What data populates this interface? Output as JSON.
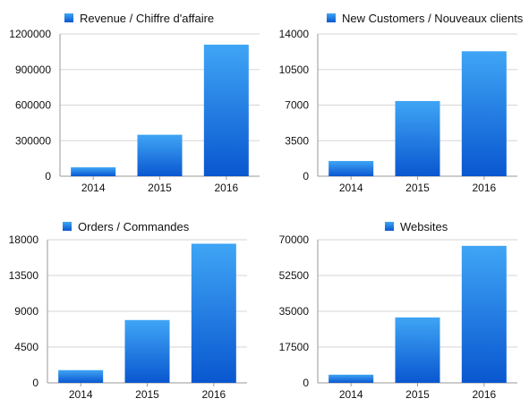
{
  "chart_data": [
    {
      "type": "bar",
      "title": "",
      "legend": [
        "Revenue / Chiffre d'affaire"
      ],
      "legend_placement": "top",
      "categories": [
        "2014",
        "2015",
        "2016"
      ],
      "series": [
        {
          "name": "Revenue / Chiffre d'affaire",
          "values": [
            75000,
            350000,
            1110000
          ]
        }
      ],
      "ylim": [
        0,
        1200000
      ],
      "yticks": [
        "0",
        "300000",
        "600000",
        "900000",
        "1200000"
      ],
      "grid": true,
      "color": "#1c7de0"
    },
    {
      "type": "bar",
      "title": "",
      "legend": [
        "New Customers / Nouveaux clients"
      ],
      "legend_placement": "top",
      "categories": [
        "2014",
        "2015",
        "2016"
      ],
      "series": [
        {
          "name": "New Customers / Nouveaux clients",
          "values": [
            1500,
            7400,
            12300
          ]
        }
      ],
      "ylim": [
        0,
        14000
      ],
      "yticks": [
        "0",
        "3500",
        "7000",
        "10500",
        "14000"
      ],
      "grid": true,
      "color": "#1c7de0"
    },
    {
      "type": "bar",
      "title": "",
      "legend": [
        "Orders / Commandes"
      ],
      "legend_placement": "top",
      "categories": [
        "2014",
        "2015",
        "2016"
      ],
      "series": [
        {
          "name": "Orders / Commandes",
          "values": [
            1600,
            7900,
            17500
          ]
        }
      ],
      "ylim": [
        0,
        18000
      ],
      "yticks": [
        "0",
        "4500",
        "9000",
        "13500",
        "18000"
      ],
      "grid": true,
      "color": "#1c7de0"
    },
    {
      "type": "bar",
      "title": "",
      "legend": [
        "Websites"
      ],
      "legend_placement": "top",
      "categories": [
        "2014",
        "2015",
        "2016"
      ],
      "series": [
        {
          "name": "Websites",
          "values": [
            4000,
            32000,
            67000
          ]
        }
      ],
      "ylim": [
        0,
        70000
      ],
      "yticks": [
        "0",
        "17500",
        "35000",
        "52500",
        "70000"
      ],
      "grid": true,
      "color": "#1c7de0"
    }
  ]
}
